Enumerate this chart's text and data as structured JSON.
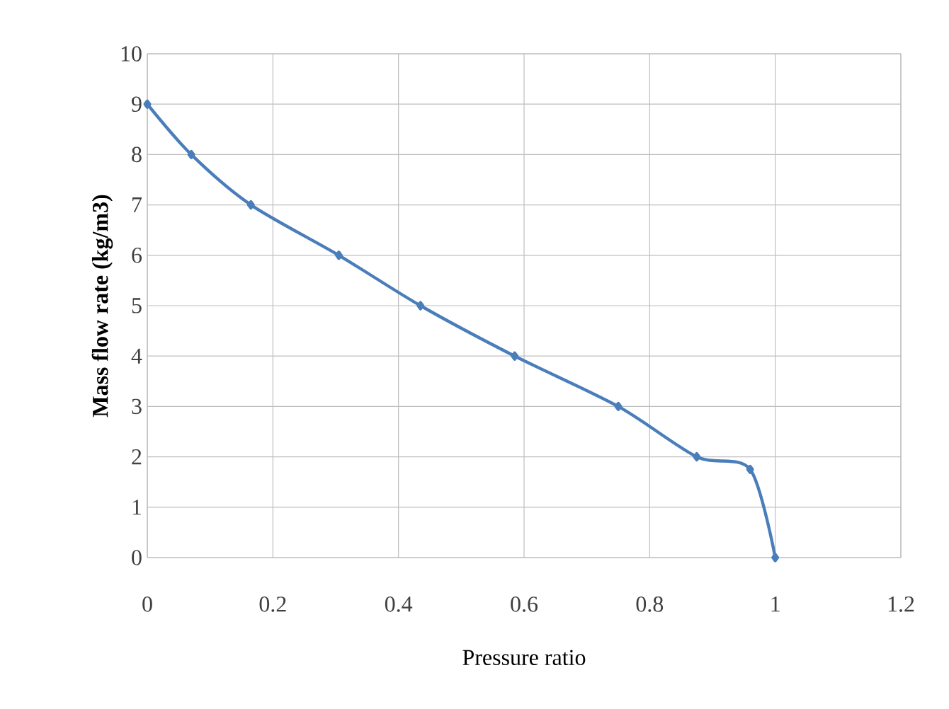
{
  "chart_data": {
    "type": "line",
    "xlabel": "Pressure ratio",
    "ylabel": "Mass flow rate (kg/m3)",
    "x": [
      0,
      0.07,
      0.165,
      0.305,
      0.435,
      0.585,
      0.75,
      0.875,
      0.96,
      1.0
    ],
    "series": [
      {
        "color": "#4a7ebb",
        "values": [
          9,
          8,
          7,
          6,
          5,
          4,
          3,
          2,
          1.75,
          0
        ]
      }
    ],
    "xlim": [
      0,
      1.2
    ],
    "ylim": [
      0,
      10
    ],
    "xticks": [
      0,
      0.2,
      0.4,
      0.6,
      0.8,
      1,
      1.2
    ],
    "yticks": [
      0,
      1,
      2,
      3,
      4,
      5,
      6,
      7,
      8,
      9,
      10
    ],
    "grid": true,
    "marker": "diamond",
    "line_style": "solid"
  }
}
